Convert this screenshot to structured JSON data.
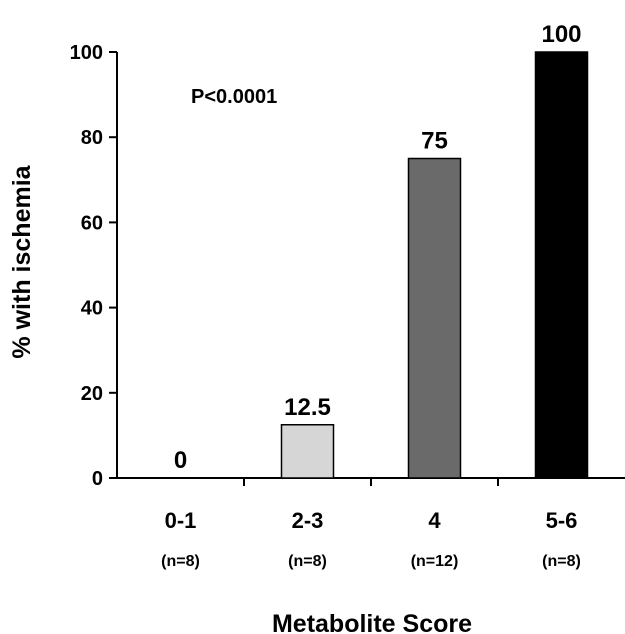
{
  "chart_data": {
    "type": "bar",
    "title": "",
    "xlabel": "Metabolite Score",
    "ylabel": "% with ischemia",
    "ylim": [
      0,
      100
    ],
    "yticks": [
      0,
      20,
      40,
      60,
      80,
      100
    ],
    "categories": [
      "0-1",
      "2-3",
      "4",
      "5-6"
    ],
    "sample_sizes": [
      "(n=8)",
      "(n=8)",
      "(n=12)",
      "(n=8)"
    ],
    "values": [
      0,
      12.5,
      75,
      100
    ],
    "value_labels": [
      "0",
      "12.5",
      "75",
      "100"
    ],
    "bar_colors": [
      "#ffffff",
      "#d6d6d6",
      "#6a6a6a",
      "#000000"
    ],
    "annotation": "P<0.0001",
    "grid": false,
    "legend": "none"
  }
}
